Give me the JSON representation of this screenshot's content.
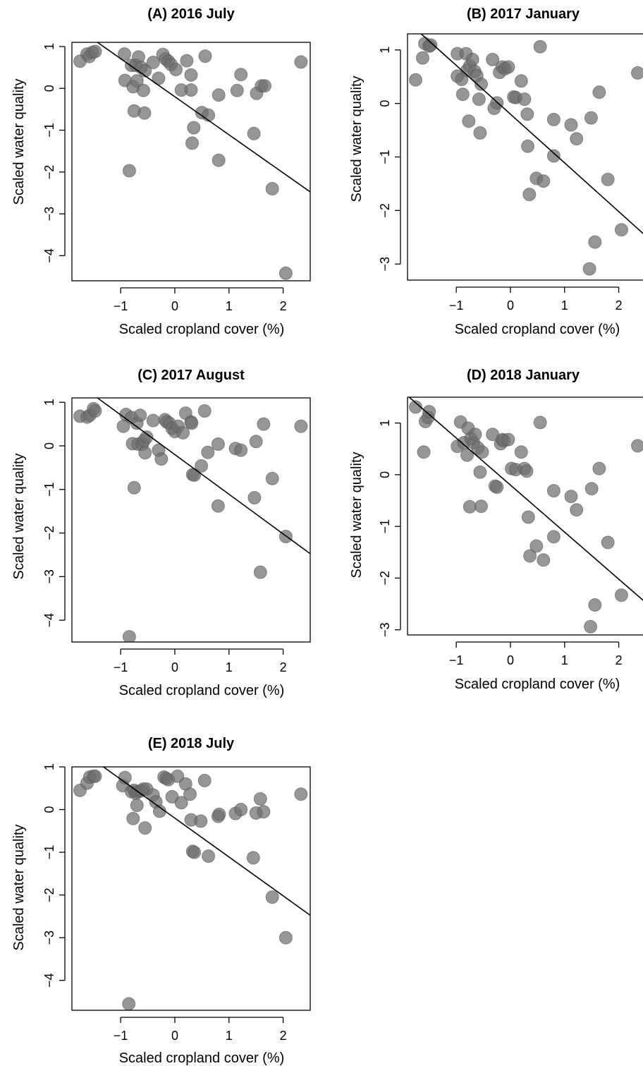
{
  "chart_data": [
    {
      "type": "scatter",
      "title": "(A) 2016 July",
      "xlabel": "Scaled cropland cover (%)",
      "ylabel": "Scaled water quality",
      "xlim": [
        -1.9,
        2.5
      ],
      "ylim": [
        -4.6,
        1.1
      ],
      "xticks": [
        "−1",
        "0",
        "1",
        "2"
      ],
      "xtick_values": [
        -1,
        0,
        1,
        2
      ],
      "yticks": [
        "1",
        "0",
        "−1",
        "−2",
        "−3",
        "−4"
      ],
      "ytick_values": [
        1,
        0,
        -1,
        -2,
        -3,
        -4
      ],
      "grid": false,
      "fit_line": {
        "slope": -0.91,
        "intercept": -0.2
      },
      "points": [
        [
          -1.75,
          0.65
        ],
        [
          -1.62,
          0.82
        ],
        [
          -1.58,
          0.76
        ],
        [
          -1.52,
          0.86
        ],
        [
          -1.47,
          0.88
        ],
        [
          -0.93,
          0.82
        ],
        [
          -0.92,
          0.19
        ],
        [
          -0.84,
          -1.97
        ],
        [
          -0.8,
          0.55
        ],
        [
          -0.77,
          0.04
        ],
        [
          -0.75,
          -0.54
        ],
        [
          -0.72,
          0.55
        ],
        [
          -0.7,
          0.18
        ],
        [
          -0.67,
          0.75
        ],
        [
          -0.62,
          0.5
        ],
        [
          -0.58,
          -0.05
        ],
        [
          -0.56,
          -0.59
        ],
        [
          -0.55,
          0.42
        ],
        [
          -0.4,
          0.62
        ],
        [
          -0.3,
          0.24
        ],
        [
          -0.22,
          0.81
        ],
        [
          -0.17,
          0.7
        ],
        [
          -0.12,
          0.65
        ],
        [
          -0.07,
          0.57
        ],
        [
          0.02,
          0.45
        ],
        [
          0.12,
          -0.04
        ],
        [
          0.22,
          0.66
        ],
        [
          0.3,
          -0.04
        ],
        [
          0.3,
          0.32
        ],
        [
          0.32,
          -1.31
        ],
        [
          0.35,
          -0.94
        ],
        [
          0.5,
          -0.58
        ],
        [
          0.56,
          0.77
        ],
        [
          0.62,
          -0.64
        ],
        [
          0.81,
          -0.16
        ],
        [
          0.81,
          -1.72
        ],
        [
          1.15,
          -0.05
        ],
        [
          1.22,
          0.33
        ],
        [
          1.46,
          -1.08
        ],
        [
          1.51,
          -0.12
        ],
        [
          1.6,
          0.06
        ],
        [
          1.66,
          0.06
        ],
        [
          1.8,
          -2.4
        ],
        [
          2.05,
          -4.42
        ],
        [
          2.33,
          0.63
        ]
      ]
    },
    {
      "type": "scatter",
      "title": "(B) 2017 January",
      "xlabel": "Scaled cropland cover (%)",
      "ylabel": "Scaled water quality",
      "xlim": [
        -1.9,
        2.5
      ],
      "ylim": [
        -3.3,
        1.3
      ],
      "xticks": [
        "−1",
        "0",
        "1",
        "2"
      ],
      "xtick_values": [
        -1,
        0,
        1,
        2
      ],
      "yticks": [
        "1",
        "0",
        "−1",
        "−2",
        "−3"
      ],
      "ytick_values": [
        1,
        0,
        -1,
        -2,
        -3
      ],
      "grid": false,
      "fit_line": {
        "slope": -0.91,
        "intercept": -0.2
      },
      "points": [
        [
          -1.75,
          0.44
        ],
        [
          -1.62,
          0.85
        ],
        [
          -1.58,
          1.12
        ],
        [
          -1.5,
          1.07
        ],
        [
          -1.47,
          1.09
        ],
        [
          -0.98,
          0.93
        ],
        [
          -0.98,
          0.51
        ],
        [
          -0.9,
          0.45
        ],
        [
          -0.88,
          0.17
        ],
        [
          -0.82,
          0.93
        ],
        [
          -0.8,
          0.62
        ],
        [
          -0.77,
          -0.33
        ],
        [
          -0.75,
          0.7
        ],
        [
          -0.7,
          0.82
        ],
        [
          -0.66,
          0.6
        ],
        [
          -0.62,
          0.52
        ],
        [
          -0.58,
          0.08
        ],
        [
          -0.56,
          -0.55
        ],
        [
          -0.54,
          0.36
        ],
        [
          -0.33,
          0.82
        ],
        [
          -0.3,
          -0.09
        ],
        [
          -0.25,
          0.01
        ],
        [
          -0.2,
          0.58
        ],
        [
          -0.15,
          0.68
        ],
        [
          -0.1,
          0.65
        ],
        [
          -0.04,
          0.68
        ],
        [
          0.06,
          0.12
        ],
        [
          0.1,
          0.11
        ],
        [
          0.2,
          0.42
        ],
        [
          0.26,
          0.08
        ],
        [
          0.31,
          -0.2
        ],
        [
          0.32,
          -0.8
        ],
        [
          0.35,
          -1.7
        ],
        [
          0.48,
          -1.4
        ],
        [
          0.55,
          1.06
        ],
        [
          0.61,
          -1.45
        ],
        [
          0.8,
          -0.3
        ],
        [
          0.8,
          -0.98
        ],
        [
          1.12,
          -0.4
        ],
        [
          1.22,
          -0.66
        ],
        [
          1.49,
          -0.27
        ],
        [
          1.46,
          -3.09
        ],
        [
          1.56,
          -2.59
        ],
        [
          1.64,
          0.21
        ],
        [
          1.8,
          -1.42
        ],
        [
          2.05,
          -2.36
        ],
        [
          2.35,
          0.57
        ]
      ]
    },
    {
      "type": "scatter",
      "title": "(C) 2017 August",
      "xlabel": "Scaled cropland cover (%)",
      "ylabel": "Scaled water quality",
      "xlim": [
        -1.9,
        2.5
      ],
      "ylim": [
        -4.5,
        1.1
      ],
      "xticks": [
        "−1",
        "0",
        "1",
        "2"
      ],
      "xtick_values": [
        -1,
        0,
        1,
        2
      ],
      "yticks": [
        "1",
        "0",
        "−1",
        "−2",
        "−3",
        "−4"
      ],
      "ytick_values": [
        1,
        0,
        -1,
        -2,
        -3,
        -4
      ],
      "grid": false,
      "fit_line": {
        "slope": -0.91,
        "intercept": -0.2
      },
      "points": [
        [
          -1.75,
          0.68
        ],
        [
          -1.62,
          0.66
        ],
        [
          -1.57,
          0.7
        ],
        [
          -1.5,
          0.85
        ],
        [
          -1.47,
          0.8
        ],
        [
          -0.95,
          0.45
        ],
        [
          -0.9,
          0.72
        ],
        [
          -0.84,
          -4.38
        ],
        [
          -0.8,
          0.65
        ],
        [
          -0.78,
          0.05
        ],
        [
          -0.75,
          -0.96
        ],
        [
          -0.7,
          0.52
        ],
        [
          -0.68,
          0.04
        ],
        [
          -0.64,
          0.7
        ],
        [
          -0.6,
          0.04
        ],
        [
          -0.57,
          0.12
        ],
        [
          -0.55,
          -0.16
        ],
        [
          -0.52,
          0.2
        ],
        [
          -0.4,
          0.58
        ],
        [
          -0.3,
          -0.1
        ],
        [
          -0.25,
          -0.3
        ],
        [
          -0.18,
          0.6
        ],
        [
          -0.15,
          0.55
        ],
        [
          -0.1,
          0.52
        ],
        [
          -0.05,
          0.4
        ],
        [
          0.0,
          0.33
        ],
        [
          0.06,
          0.45
        ],
        [
          0.15,
          0.3
        ],
        [
          0.2,
          0.75
        ],
        [
          0.3,
          0.55
        ],
        [
          0.31,
          0.52
        ],
        [
          0.33,
          -0.66
        ],
        [
          0.36,
          -0.67
        ],
        [
          0.49,
          -0.46
        ],
        [
          0.55,
          0.8
        ],
        [
          0.61,
          -0.15
        ],
        [
          0.8,
          0.04
        ],
        [
          0.8,
          -1.38
        ],
        [
          1.12,
          -0.06
        ],
        [
          1.22,
          -0.1
        ],
        [
          1.47,
          -1.19
        ],
        [
          1.5,
          0.1
        ],
        [
          1.58,
          -2.9
        ],
        [
          1.64,
          0.5
        ],
        [
          1.8,
          -0.75
        ],
        [
          2.05,
          -2.08
        ],
        [
          2.33,
          0.45
        ]
      ]
    },
    {
      "type": "scatter",
      "title": "(D) 2018 January",
      "xlabel": "Scaled cropland cover (%)",
      "ylabel": "Scaled water quality",
      "xlim": [
        -1.9,
        2.5
      ],
      "ylim": [
        -3.1,
        1.5
      ],
      "xticks": [
        "−1",
        "0",
        "1",
        "2"
      ],
      "xtick_values": [
        -1,
        0,
        1,
        2
      ],
      "yticks": [
        "1",
        "0",
        "−1",
        "−2",
        "−3"
      ],
      "ytick_values": [
        1,
        0,
        -1,
        -2,
        -3
      ],
      "grid": false,
      "fit_line": {
        "slope": -0.91,
        "intercept": -0.2
      },
      "points": [
        [
          -1.75,
          1.31
        ],
        [
          -1.6,
          0.44
        ],
        [
          -1.57,
          1.03
        ],
        [
          -1.52,
          1.11
        ],
        [
          -1.5,
          1.22
        ],
        [
          -0.98,
          0.55
        ],
        [
          -0.92,
          1.02
        ],
        [
          -0.86,
          0.62
        ],
        [
          -0.8,
          0.38
        ],
        [
          -0.78,
          0.9
        ],
        [
          -0.75,
          -0.62
        ],
        [
          -0.73,
          0.7
        ],
        [
          -0.68,
          0.62
        ],
        [
          -0.65,
          0.78
        ],
        [
          -0.6,
          0.52
        ],
        [
          -0.56,
          0.05
        ],
        [
          -0.54,
          -0.61
        ],
        [
          -0.52,
          0.44
        ],
        [
          -0.33,
          0.78
        ],
        [
          -0.28,
          -0.22
        ],
        [
          -0.25,
          -0.24
        ],
        [
          -0.18,
          0.6
        ],
        [
          -0.15,
          0.68
        ],
        [
          -0.12,
          0.66
        ],
        [
          -0.04,
          0.68
        ],
        [
          0.02,
          0.12
        ],
        [
          0.1,
          0.1
        ],
        [
          0.2,
          0.44
        ],
        [
          0.26,
          0.12
        ],
        [
          0.3,
          0.07
        ],
        [
          0.33,
          -0.82
        ],
        [
          0.36,
          -1.57
        ],
        [
          0.48,
          -1.38
        ],
        [
          0.55,
          1.01
        ],
        [
          0.61,
          -1.65
        ],
        [
          0.8,
          -0.31
        ],
        [
          0.8,
          -1.2
        ],
        [
          1.12,
          -0.42
        ],
        [
          1.22,
          -0.68
        ],
        [
          1.48,
          -2.94
        ],
        [
          1.5,
          -0.27
        ],
        [
          1.56,
          -2.52
        ],
        [
          1.64,
          0.12
        ],
        [
          1.8,
          -1.31
        ],
        [
          2.05,
          -2.33
        ],
        [
          2.35,
          0.56
        ]
      ]
    },
    {
      "type": "scatter",
      "title": "(E) 2018 July",
      "xlabel": "Scaled cropland cover (%)",
      "ylabel": "Scaled water quality",
      "xlim": [
        -1.9,
        2.5
      ],
      "ylim": [
        -4.7,
        1.0
      ],
      "xticks": [
        "−1",
        "0",
        "1",
        "2"
      ],
      "xtick_values": [
        -1,
        0,
        1,
        2
      ],
      "yticks": [
        "1",
        "0",
        "−1",
        "−2",
        "−3",
        "−4"
      ],
      "ytick_values": [
        1,
        0,
        -1,
        -2,
        -3,
        -4
      ],
      "grid": false,
      "fit_line": {
        "slope": -0.91,
        "intercept": -0.2
      },
      "points": [
        [
          -1.75,
          0.45
        ],
        [
          -1.62,
          0.62
        ],
        [
          -1.57,
          0.76
        ],
        [
          -1.5,
          0.78
        ],
        [
          -1.47,
          0.78
        ],
        [
          -0.96,
          0.56
        ],
        [
          -0.92,
          0.75
        ],
        [
          -0.85,
          -4.55
        ],
        [
          -0.8,
          0.42
        ],
        [
          -0.77,
          -0.21
        ],
        [
          -0.75,
          0.45
        ],
        [
          -0.72,
          0.38
        ],
        [
          -0.7,
          0.1
        ],
        [
          -0.68,
          0.42
        ],
        [
          -0.62,
          0.44
        ],
        [
          -0.58,
          0.48
        ],
        [
          -0.55,
          -0.43
        ],
        [
          -0.52,
          0.48
        ],
        [
          -0.4,
          0.34
        ],
        [
          -0.35,
          0.18
        ],
        [
          -0.28,
          -0.04
        ],
        [
          -0.2,
          0.76
        ],
        [
          -0.16,
          0.73
        ],
        [
          -0.12,
          0.7
        ],
        [
          -0.05,
          0.3
        ],
        [
          0.05,
          0.78
        ],
        [
          0.12,
          0.16
        ],
        [
          0.2,
          0.6
        ],
        [
          0.28,
          0.36
        ],
        [
          0.3,
          -0.24
        ],
        [
          0.33,
          -0.98
        ],
        [
          0.36,
          -1.0
        ],
        [
          0.48,
          -0.27
        ],
        [
          0.55,
          0.68
        ],
        [
          0.62,
          -1.09
        ],
        [
          0.8,
          -0.16
        ],
        [
          0.82,
          -0.11
        ],
        [
          1.12,
          -0.09
        ],
        [
          1.22,
          0.0
        ],
        [
          1.45,
          -1.13
        ],
        [
          1.5,
          -0.08
        ],
        [
          1.58,
          0.25
        ],
        [
          1.64,
          -0.05
        ],
        [
          1.8,
          -2.05
        ],
        [
          2.05,
          -3.0
        ],
        [
          2.33,
          0.36
        ]
      ]
    }
  ]
}
